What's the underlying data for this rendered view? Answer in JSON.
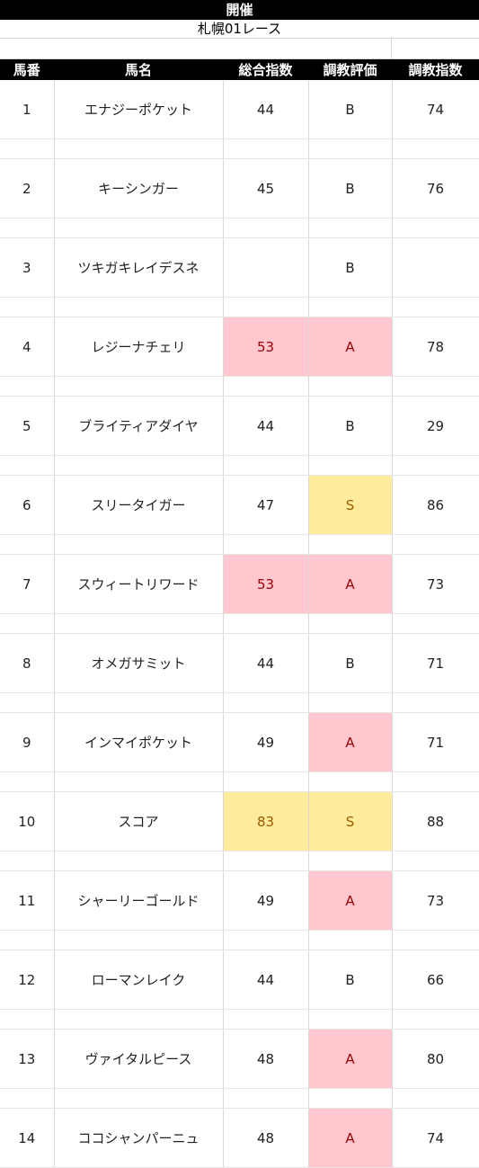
{
  "header": {
    "title": "開催",
    "subtitle": "札幌01レース"
  },
  "columns": [
    "馬番",
    "馬名",
    "総合指数",
    "調教評価",
    "調教指数"
  ],
  "colors": {
    "pink_fill": "#ffc7ce",
    "pink_text": "#9c0006",
    "yellow_fill": "#ffeb9c",
    "yellow_text": "#9c5700",
    "header_bg": "#000000"
  },
  "rows": [
    {
      "num": "1",
      "name": "エナジーポケット",
      "total": "44",
      "eval": "B",
      "train": "74",
      "total_hl": "",
      "eval_hl": ""
    },
    {
      "num": "2",
      "name": "キーシンガー",
      "total": "45",
      "eval": "B",
      "train": "76",
      "total_hl": "",
      "eval_hl": ""
    },
    {
      "num": "3",
      "name": "ツキガキレイデスネ",
      "total": "",
      "eval": "B",
      "train": "",
      "total_hl": "",
      "eval_hl": ""
    },
    {
      "num": "4",
      "name": "レジーナチェリ",
      "total": "53",
      "eval": "A",
      "train": "78",
      "total_hl": "pink",
      "eval_hl": "pink"
    },
    {
      "num": "5",
      "name": "ブライティアダイヤ",
      "total": "44",
      "eval": "B",
      "train": "29",
      "total_hl": "",
      "eval_hl": ""
    },
    {
      "num": "6",
      "name": "スリータイガー",
      "total": "47",
      "eval": "S",
      "train": "86",
      "total_hl": "",
      "eval_hl": "yellow"
    },
    {
      "num": "7",
      "name": "スウィートリワード",
      "total": "53",
      "eval": "A",
      "train": "73",
      "total_hl": "pink",
      "eval_hl": "pink"
    },
    {
      "num": "8",
      "name": "オメガサミット",
      "total": "44",
      "eval": "B",
      "train": "71",
      "total_hl": "",
      "eval_hl": ""
    },
    {
      "num": "9",
      "name": "インマイポケット",
      "total": "49",
      "eval": "A",
      "train": "71",
      "total_hl": "",
      "eval_hl": "pink"
    },
    {
      "num": "10",
      "name": "スコア",
      "total": "83",
      "eval": "S",
      "train": "88",
      "total_hl": "yellow",
      "eval_hl": "yellow"
    },
    {
      "num": "11",
      "name": "シャーリーゴールド",
      "total": "49",
      "eval": "A",
      "train": "73",
      "total_hl": "",
      "eval_hl": "pink"
    },
    {
      "num": "12",
      "name": "ローマンレイク",
      "total": "44",
      "eval": "B",
      "train": "66",
      "total_hl": "",
      "eval_hl": ""
    },
    {
      "num": "13",
      "name": "ヴァイタルピース",
      "total": "48",
      "eval": "A",
      "train": "80",
      "total_hl": "",
      "eval_hl": "pink"
    },
    {
      "num": "14",
      "name": "ココシャンパーニュ",
      "total": "48",
      "eval": "A",
      "train": "74",
      "total_hl": "",
      "eval_hl": "pink"
    }
  ]
}
